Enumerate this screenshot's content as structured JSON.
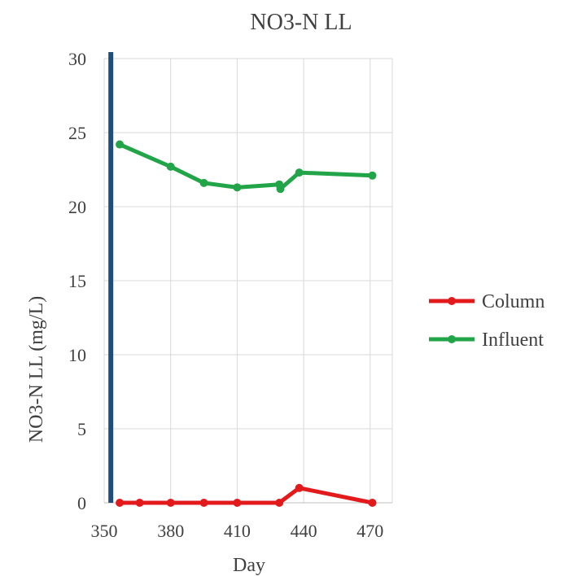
{
  "chart_data": {
    "type": "line",
    "title": "NO3-N LL",
    "xlabel": "Day",
    "ylabel": "NO3-N LL (mg/L)",
    "xlim": [
      350,
      480
    ],
    "ylim": [
      0,
      30
    ],
    "x_ticks": [
      350,
      380,
      410,
      440,
      470
    ],
    "y_ticks": [
      0,
      5,
      10,
      15,
      20,
      25,
      30
    ],
    "grid": true,
    "legend_position": "right",
    "reference_line": {
      "x": 353,
      "color": "#1f4e79"
    },
    "series": [
      {
        "name": "Column",
        "color": "#e31a1c",
        "points": [
          {
            "x": 357,
            "y": 0
          },
          {
            "x": 366,
            "y": 0
          },
          {
            "x": 380,
            "y": 0
          },
          {
            "x": 395,
            "y": 0
          },
          {
            "x": 410,
            "y": 0
          },
          {
            "x": 429,
            "y": 0
          },
          {
            "x": 438,
            "y": 1
          },
          {
            "x": 471,
            "y": 0
          }
        ]
      },
      {
        "name": "Influent",
        "color": "#22a548",
        "points": [
          {
            "x": 357,
            "y": 24.2
          },
          {
            "x": 380,
            "y": 22.7
          },
          {
            "x": 395,
            "y": 21.6
          },
          {
            "x": 410,
            "y": 21.3
          },
          {
            "x": 429,
            "y": 21.5
          },
          {
            "x": 429.5,
            "y": 21.2
          },
          {
            "x": 438,
            "y": 22.3
          },
          {
            "x": 471,
            "y": 22.1
          }
        ]
      }
    ]
  }
}
